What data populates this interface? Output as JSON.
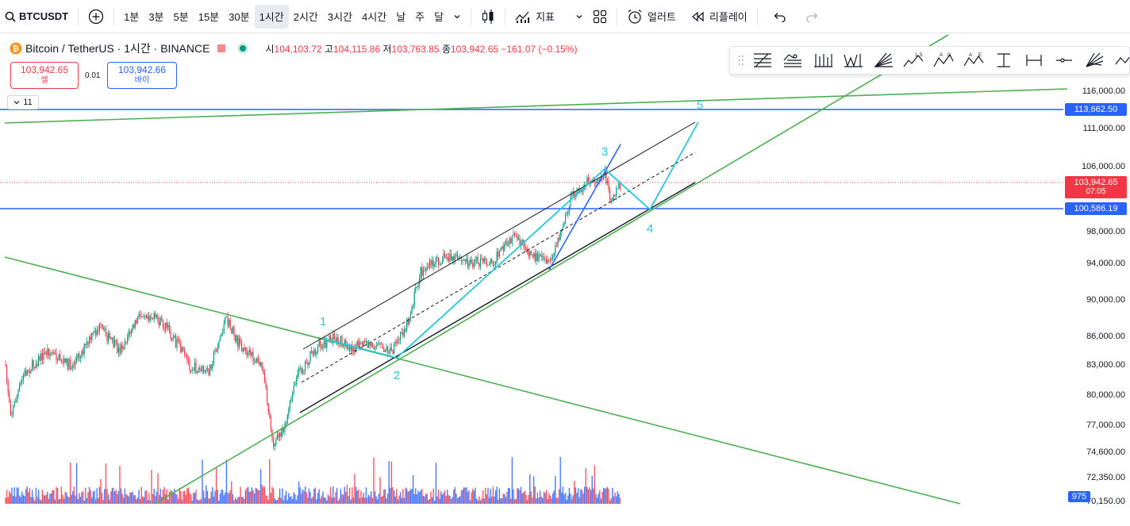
{
  "toolbar": {
    "symbol": "BTCUSDT",
    "intervals": [
      "1분",
      "3분",
      "5분",
      "15분",
      "30분",
      "1시간",
      "2시간",
      "3시간",
      "4시간",
      "날",
      "주",
      "달"
    ],
    "active_interval": "1시간",
    "indicators_label": "지표",
    "alert_label": "얼러트",
    "replay_label": "리플레이"
  },
  "legend": {
    "title": "Bitcoin / TetherUS · 1시간 · BINANCE",
    "open_label": "시",
    "open": "104,103.72",
    "high_label": "고",
    "high": "104,115.86",
    "low_label": "저",
    "low": "103,763.85",
    "close_label": "종",
    "close": "103,942.65",
    "change": "−161.07 (−0.15%)"
  },
  "trade": {
    "sell_price": "103,942.65",
    "sell_label": "셀",
    "spread": "0.01",
    "buy_price": "103,942.66",
    "buy_label": "바이"
  },
  "collapse_count": "11",
  "price_scale": {
    "ticks": [
      "116,000.00",
      "111,000.00",
      "106,000.00",
      "98,000.00",
      "94,000.00",
      "90,000.00",
      "86,000.00",
      "83,000.00",
      "80,000.00",
      "77,000.00",
      "74,600.00",
      "72,350.00",
      "70,150.00"
    ],
    "hline_upper": "113,662.50",
    "current_price": "103,942.65",
    "countdown": "07:05",
    "hline_lower": "100,586.19",
    "volume": "975"
  },
  "wave_labels": [
    "1",
    "2",
    "3",
    "4",
    "5"
  ],
  "colors": {
    "up": "#089981",
    "down": "#f23645",
    "hline": "#2962ff",
    "trend_green": "#4caf50",
    "wave": "#26c6da",
    "vol_blue": "#2962ff",
    "vol_red": "#f23645"
  }
}
